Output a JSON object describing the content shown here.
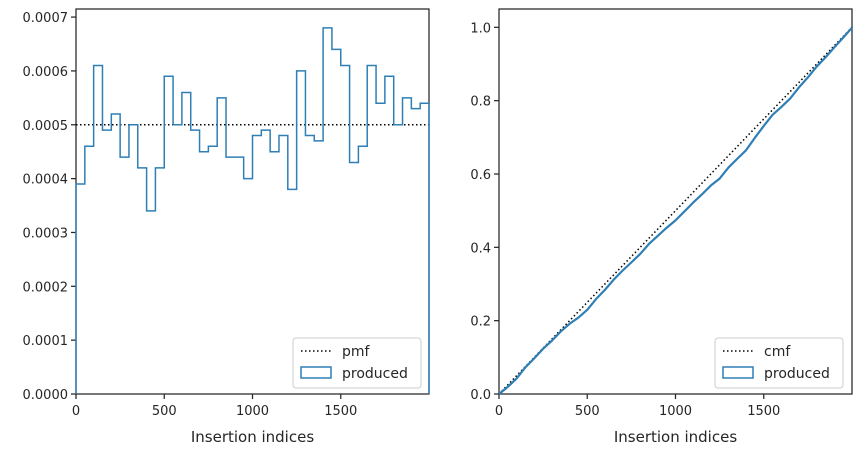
{
  "chart_data": [
    {
      "type": "histogram-step",
      "title": "",
      "xlabel": "Insertion indices",
      "ylabel": "",
      "xlim": [
        0,
        2000
      ],
      "ylim": [
        0,
        0.000715
      ],
      "xticks": [
        0,
        500,
        1000,
        1500
      ],
      "xtick_labels": [
        "0",
        "500",
        "1000",
        "1500"
      ],
      "yticks": [
        0,
        0.0001,
        0.0002,
        0.0003,
        0.0004,
        0.0005,
        0.0006,
        0.0007
      ],
      "ytick_labels": [
        "0.0000",
        "0.0001",
        "0.0002",
        "0.0003",
        "0.0004",
        "0.0005",
        "0.0006",
        "0.0007"
      ],
      "bin_width": 50,
      "series": [
        {
          "name": "produced",
          "color": "#2f7fb5",
          "bin_start": [
            0,
            50,
            100,
            150,
            200,
            250,
            300,
            350,
            400,
            450,
            500,
            550,
            600,
            650,
            700,
            750,
            800,
            850,
            900,
            950,
            1000,
            1050,
            1100,
            1150,
            1200,
            1250,
            1300,
            1350,
            1400,
            1450,
            1500,
            1550,
            1600,
            1650,
            1700,
            1750,
            1800,
            1850,
            1900,
            1950
          ],
          "values": [
            0.00039,
            0.00046,
            0.00061,
            0.00049,
            0.00052,
            0.00044,
            0.0005,
            0.00042,
            0.00034,
            0.00042,
            0.00059,
            0.0005,
            0.00056,
            0.00049,
            0.00045,
            0.00046,
            0.00055,
            0.00044,
            0.00044,
            0.0004,
            0.00048,
            0.00049,
            0.00045,
            0.00048,
            0.00038,
            0.0006,
            0.00048,
            0.00047,
            0.00068,
            0.00064,
            0.00061,
            0.00043,
            0.00046,
            0.00061,
            0.00054,
            0.00059,
            0.0005,
            0.00055,
            0.00053,
            0.00054
          ]
        },
        {
          "name": "pmf",
          "style": "dotted",
          "color": "#000000",
          "value": 0.0005
        }
      ],
      "legend": {
        "placement": "lower-right",
        "entries": [
          {
            "label": "pmf",
            "kind": "dotted-line"
          },
          {
            "label": "produced",
            "kind": "patch"
          }
        ]
      }
    },
    {
      "type": "line",
      "title": "",
      "xlabel": "Insertion indices",
      "ylabel": "",
      "xlim": [
        0,
        2000
      ],
      "ylim": [
        0,
        1.05
      ],
      "xticks": [
        0,
        500,
        1000,
        1500
      ],
      "xtick_labels": [
        "0",
        "500",
        "1000",
        "1500"
      ],
      "yticks": [
        0,
        0.2,
        0.4,
        0.6,
        0.8,
        1.0
      ],
      "ytick_labels": [
        "0.0",
        "0.2",
        "0.4",
        "0.6",
        "0.8",
        "1.0"
      ],
      "series": [
        {
          "name": "produced",
          "color": "#2f7fb5",
          "x": [
            0,
            50,
            100,
            150,
            200,
            250,
            300,
            350,
            400,
            450,
            500,
            550,
            600,
            650,
            700,
            750,
            800,
            850,
            900,
            950,
            1000,
            1050,
            1100,
            1150,
            1200,
            1250,
            1300,
            1350,
            1400,
            1450,
            1500,
            1550,
            1600,
            1650,
            1700,
            1750,
            1800,
            1850,
            1900,
            1950,
            2000
          ],
          "y": [
            0,
            0.0195,
            0.0425,
            0.073,
            0.0975,
            0.1235,
            0.1455,
            0.1705,
            0.1915,
            0.2085,
            0.2295,
            0.259,
            0.284,
            0.312,
            0.3365,
            0.359,
            0.382,
            0.4095,
            0.4315,
            0.4535,
            0.4735,
            0.4975,
            0.522,
            0.5445,
            0.5685,
            0.5875,
            0.6175,
            0.6415,
            0.665,
            0.699,
            0.731,
            0.7615,
            0.783,
            0.806,
            0.8365,
            0.8635,
            0.893,
            0.918,
            0.9455,
            0.972,
            0.999
          ]
        },
        {
          "name": "cmf",
          "style": "dotted",
          "color": "#000000",
          "x": [
            0,
            2000
          ],
          "y": [
            0,
            1.0
          ]
        }
      ],
      "legend": {
        "placement": "lower-right",
        "entries": [
          {
            "label": "cmf",
            "kind": "dotted-line"
          },
          {
            "label": "produced",
            "kind": "patch"
          }
        ]
      }
    }
  ]
}
